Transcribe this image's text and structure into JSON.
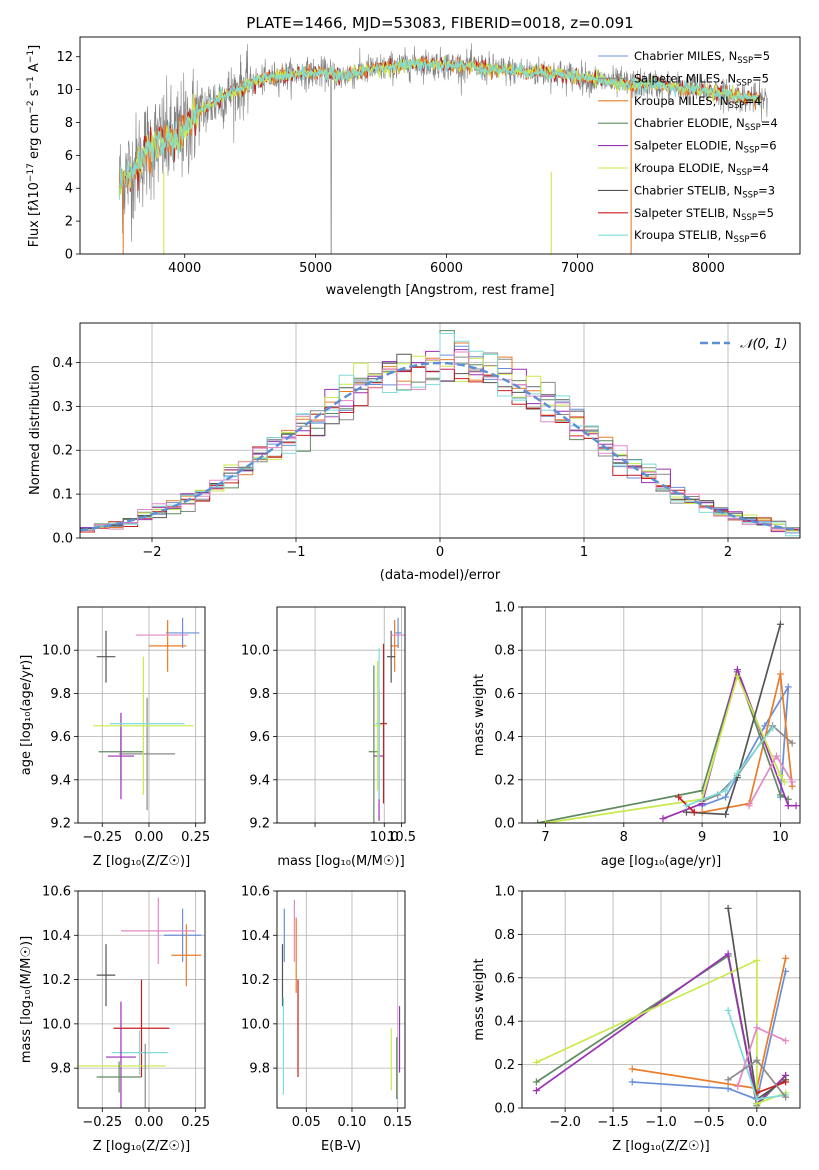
{
  "figure": {
    "title": "PLATE=1466, MJD=53083, FIBERID=0018, z=0.091"
  },
  "styles": {
    "colors": {
      "Chabrier MILES": "#6a8fd8",
      "Salpeter MILES": "#8a8a8a",
      "Kroupa MILES": "#e87d2b",
      "Chabrier ELODIE": "#5f8a5f",
      "Salpeter ELODIE": "#9b30b5",
      "Kroupa ELODIE": "#c8ea4a",
      "Chabrier STELIB": "#555555",
      "Salpeter STELIB": "#c81e1e",
      "Kroupa STELIB": "#7fdcd8",
      "Gaussian": "#5b8fd6",
      "spectrum_gray": "#808080"
    }
  },
  "chart_data": [
    {
      "id": "spectrum",
      "type": "line",
      "title": "PLATE=1466, MJD=53083, FIBERID=0018, z=0.091",
      "xlabel": "wavelength [Angstrom, rest frame]",
      "ylabel": "Flux [fλ10⁻¹⁷ erg cm⁻² s⁻¹ A⁻¹]",
      "xlim": [
        3200,
        8700
      ],
      "ylim": [
        0,
        13.2
      ],
      "xticks": [
        4000,
        5000,
        6000,
        7000,
        8000
      ],
      "yticks": [
        0,
        2,
        4,
        6,
        8,
        10,
        12
      ],
      "legend": {
        "placement": "right",
        "entries": [
          {
            "model": "Chabrier MILES",
            "nssp": "5"
          },
          {
            "model": "Salpeter MILES",
            "nssp": "5"
          },
          {
            "model": "Kroupa MILES",
            "nssp": "4"
          },
          {
            "model": "Chabrier ELODIE",
            "nssp": "4"
          },
          {
            "model": "Salpeter ELODIE",
            "nssp": "6"
          },
          {
            "model": "Kroupa ELODIE",
            "nssp": "4"
          },
          {
            "model": "Chabrier STELIB",
            "nssp": "3"
          },
          {
            "model": "Salpeter STELIB",
            "nssp": "5"
          },
          {
            "model": "Kroupa STELIB",
            "nssp": "6"
          }
        ]
      },
      "continuum": [
        [
          3500,
          4.4
        ],
        [
          3600,
          5.0
        ],
        [
          3700,
          6.3
        ],
        [
          3800,
          6.8
        ],
        [
          3900,
          6.9
        ],
        [
          4000,
          7.6
        ],
        [
          4100,
          8.6
        ],
        [
          4200,
          9.1
        ],
        [
          4300,
          9.6
        ],
        [
          4400,
          10.0
        ],
        [
          4500,
          10.4
        ],
        [
          4700,
          10.8
        ],
        [
          4900,
          11.0
        ],
        [
          5100,
          11.0
        ],
        [
          5200,
          10.8
        ],
        [
          5400,
          11.2
        ],
        [
          5600,
          11.4
        ],
        [
          5800,
          11.6
        ],
        [
          6000,
          11.5
        ],
        [
          6200,
          11.4
        ],
        [
          6400,
          11.2
        ],
        [
          6600,
          11.1
        ],
        [
          6800,
          11.0
        ],
        [
          7000,
          10.8
        ],
        [
          7200,
          10.5
        ],
        [
          7400,
          10.3
        ],
        [
          7600,
          10.3
        ],
        [
          7800,
          10.1
        ],
        [
          8000,
          9.9
        ],
        [
          8200,
          9.6
        ],
        [
          8400,
          9.4
        ]
      ],
      "xrange_data": [
        3500,
        8450
      ]
    },
    {
      "id": "residuals",
      "type": "histogram",
      "xlabel": "(data-model)/error",
      "ylabel": "Normed distribution",
      "xlim": [
        -2.5,
        2.5
      ],
      "ylim": [
        0,
        0.49
      ],
      "xticks": [
        -2,
        -1,
        0,
        1,
        2
      ],
      "yticks": [
        0.0,
        0.1,
        0.2,
        0.3,
        0.4
      ],
      "grid": true,
      "legend": {
        "placement": "top-right",
        "entries": [
          "𝒩(0, 1)"
        ]
      },
      "bin_width": 0.1
    },
    {
      "id": "age_vs_Z",
      "type": "errorbar",
      "xlabel": "Z [log₁₀(Z/Z☉)]",
      "ylabel": "age  [log₁₀(age/yr)]",
      "xlim": [
        -0.38,
        0.3
      ],
      "ylim": [
        9.2,
        10.2
      ],
      "xticks": [
        -0.25,
        0.0,
        0.25
      ],
      "yticks": [
        9.2,
        9.4,
        9.6,
        9.8,
        10.0
      ],
      "grid": true,
      "points": [
        {
          "model": "Chabrier MILES",
          "x": 0.18,
          "y": 10.08,
          "xerr": 0.09,
          "yerr": 0.07
        },
        {
          "model": "Salpeter MILES",
          "x": -0.01,
          "y": 9.52,
          "xerr": 0.15,
          "yerr": 0.26
        },
        {
          "model": "Kroupa MILES",
          "x": 0.1,
          "y": 10.02,
          "xerr": 0.1,
          "yerr": 0.12
        },
        {
          "model": "Chabrier ELODIE",
          "x": -0.15,
          "y": 9.53,
          "xerr": 0.12,
          "yerr": 0.13
        },
        {
          "model": "Salpeter ELODIE",
          "x": -0.15,
          "y": 9.51,
          "xerr": 0.07,
          "yerr": 0.2
        },
        {
          "model": "Kroupa ELODIE",
          "x": -0.03,
          "y": 9.65,
          "xerr": 0.27,
          "yerr": 0.32
        },
        {
          "model": "Chabrier STELIB",
          "x": -0.23,
          "y": 9.97,
          "xerr": 0.05,
          "yerr": 0.12
        },
        {
          "model": "Salpeter STELIB",
          "x": -0.15,
          "y": 9.66,
          "xerr": 0.0,
          "yerr": 0.0
        },
        {
          "model": "Kroupa STELIB",
          "x": -0.01,
          "y": 9.66,
          "xerr": 0.2,
          "yerr": 0.0
        },
        {
          "model": "Pink",
          "x": 0.07,
          "y": 10.07,
          "xerr": 0.14,
          "yerr": 0.0
        }
      ]
    },
    {
      "id": "age_vs_mass",
      "type": "errorbar",
      "xlabel": "mass [log₁₀(M/M☉)]",
      "ylabel": "",
      "xlim": [
        6.9,
        10.6
      ],
      "ylim": [
        9.2,
        10.2
      ],
      "xticks": [
        8.0,
        10.0,
        10.5
      ],
      "xticklabels": [
        "",
        "10.0",
        "10.5"
      ],
      "yticks": [
        9.2,
        9.4,
        9.6,
        9.8,
        10.0
      ],
      "grid": true,
      "points": [
        {
          "model": "Chabrier MILES",
          "x": 10.4,
          "y": 10.08,
          "xerr": 0.1,
          "yerr": 0.07
        },
        {
          "model": "Kroupa MILES",
          "x": 10.3,
          "y": 10.02,
          "xerr": 0.12,
          "yerr": 0.12
        },
        {
          "model": "Chabrier STELIB",
          "x": 10.2,
          "y": 9.97,
          "xerr": 0.12,
          "yerr": 0.12
        },
        {
          "model": "Pink",
          "x": 10.4,
          "y": 10.07,
          "xerr": 0.2,
          "yerr": 0.0
        },
        {
          "model": "Chabrier ELODIE",
          "x": 9.7,
          "y": 9.53,
          "xerr": 0.15,
          "yerr": 0.4
        },
        {
          "model": "Salpeter ELODIE",
          "x": 9.85,
          "y": 9.51,
          "xerr": 0.15,
          "yerr": 0.3
        },
        {
          "model": "Kroupa ELODIE",
          "x": 9.81,
          "y": 9.65,
          "xerr": 0.1,
          "yerr": 0.3
        },
        {
          "model": "Kroupa STELIB",
          "x": 9.85,
          "y": 9.66,
          "xerr": 0.1,
          "yerr": 0.35
        },
        {
          "model": "Salpeter STELIB",
          "x": 9.98,
          "y": 9.66,
          "xerr": 0.1,
          "yerr": 0.37
        }
      ]
    },
    {
      "id": "weight_vs_age",
      "type": "line",
      "xlabel": "age  [log₁₀(age/yr)]",
      "ylabel": "mass weight",
      "xlim": [
        6.7,
        10.25
      ],
      "ylim": [
        0.0,
        1.0
      ],
      "xticks": [
        7,
        8,
        9,
        10
      ],
      "yticks": [
        0.0,
        0.2,
        0.4,
        0.6,
        0.8,
        1.0
      ],
      "grid": true,
      "series": [
        {
          "model": "Chabrier MILES",
          "x": [
            9.0,
            9.3,
            9.8,
            10.1,
            10.0
          ],
          "y": [
            0.08,
            0.12,
            0.45,
            0.63,
            0.12
          ]
        },
        {
          "model": "Salpeter MILES",
          "x": [
            9.0,
            9.2,
            9.45,
            9.9,
            10.15
          ],
          "y": [
            0.1,
            0.13,
            0.22,
            0.45,
            0.37
          ]
        },
        {
          "model": "Kroupa MILES",
          "x": [
            9.0,
            9.6,
            10.0,
            10.15
          ],
          "y": [
            0.05,
            0.09,
            0.69,
            0.17
          ]
        },
        {
          "model": "Chabrier ELODIE",
          "x": [
            6.9,
            9.0,
            9.45,
            10.0,
            10.1
          ],
          "y": [
            0.0,
            0.15,
            0.7,
            0.13,
            0.11
          ]
        },
        {
          "model": "Salpeter ELODIE",
          "x": [
            8.5,
            9.0,
            9.45,
            10.1,
            10.2
          ],
          "y": [
            0.02,
            0.09,
            0.71,
            0.08,
            0.08
          ]
        },
        {
          "model": "Kroupa ELODIE",
          "x": [
            7.0,
            9.0,
            9.45,
            10.0,
            10.05
          ],
          "y": [
            0.0,
            0.11,
            0.68,
            0.22,
            0.19
          ]
        },
        {
          "model": "Chabrier STELIB",
          "x": [
            8.8,
            9.3,
            9.45,
            10.0
          ],
          "y": [
            0.05,
            0.04,
            0.21,
            0.92
          ]
        },
        {
          "model": "Salpeter STELIB",
          "x": [
            8.7,
            8.9
          ],
          "y": [
            0.12,
            0.05
          ]
        },
        {
          "model": "Kroupa STELIB",
          "x": [
            8.8,
            9.3,
            9.45,
            9.9
          ],
          "y": [
            0.08,
            0.15,
            0.23,
            0.44
          ]
        },
        {
          "model": "Pink",
          "x": [
            9.6,
            9.95,
            10.15
          ],
          "y": [
            0.08,
            0.31,
            0.19
          ]
        }
      ]
    },
    {
      "id": "mass_vs_Z",
      "type": "errorbar",
      "xlabel": "Z [log₁₀(Z/Z☉)]",
      "ylabel": "mass [log₁₀(M/M☉)]",
      "xlim": [
        -0.38,
        0.3
      ],
      "ylim": [
        9.62,
        10.6
      ],
      "xticks": [
        -0.25,
        0.0,
        0.25
      ],
      "yticks": [
        9.8,
        10.0,
        10.2,
        10.4,
        10.6
      ],
      "grid": true,
      "points": [
        {
          "model": "Chabrier MILES",
          "x": 0.18,
          "y": 10.4,
          "xerr": 0.1,
          "yerr": 0.12
        },
        {
          "model": "Kroupa MILES",
          "x": 0.2,
          "y": 10.31,
          "xerr": 0.08,
          "yerr": 0.14
        },
        {
          "model": "Pink",
          "x": 0.05,
          "y": 10.42,
          "xerr": 0.2,
          "yerr": 0.15
        },
        {
          "model": "Chabrier STELIB",
          "x": -0.23,
          "y": 10.22,
          "xerr": 0.05,
          "yerr": 0.14
        },
        {
          "model": "Salpeter STELIB",
          "x": -0.04,
          "y": 9.98,
          "xerr": 0.15,
          "yerr": 0.22
        },
        {
          "model": "Kroupa STELIB",
          "x": -0.05,
          "y": 9.87,
          "xerr": 0.15,
          "yerr": 0.1
        },
        {
          "model": "Salpeter ELODIE",
          "x": -0.15,
          "y": 9.85,
          "xerr": 0.08,
          "yerr": 0.25
        },
        {
          "model": "Kroupa ELODIE",
          "x": -0.15,
          "y": 9.81,
          "xerr": 0.24,
          "yerr": 0.0
        },
        {
          "model": "Chabrier ELODIE",
          "x": -0.16,
          "y": 9.76,
          "xerr": 0.12,
          "yerr": 0.07
        },
        {
          "model": "Salpeter MILES",
          "x": -0.02,
          "y": 9.76,
          "xerr": 0.0,
          "yerr": 0.15
        }
      ]
    },
    {
      "id": "mass_vs_EBV",
      "type": "errorbar",
      "xlabel": "E(B-V)",
      "ylabel": "",
      "xlim": [
        0.018,
        0.158
      ],
      "ylim": [
        9.62,
        10.6
      ],
      "xticks": [
        0.05,
        0.1,
        0.15
      ],
      "yticks": [
        9.8,
        10.0,
        10.2,
        10.4,
        10.6
      ],
      "grid": true,
      "points": [
        {
          "model": "Chabrier MILES",
          "x": 0.026,
          "y": 10.4,
          "xerr": 0,
          "yerr": 0.12
        },
        {
          "model": "Pink",
          "x": 0.037,
          "y": 10.42,
          "xerr": 0,
          "yerr": 0.14
        },
        {
          "model": "Kroupa MILES",
          "x": 0.039,
          "y": 10.31,
          "xerr": 0,
          "yerr": 0.17
        },
        {
          "model": "Chabrier STELIB",
          "x": 0.024,
          "y": 10.22,
          "xerr": 0,
          "yerr": 0.14
        },
        {
          "model": "Salpeter STELIB",
          "x": 0.041,
          "y": 9.98,
          "xerr": 0,
          "yerr": 0.22
        },
        {
          "model": "Kroupa STELIB",
          "x": 0.025,
          "y": 9.9,
          "xerr": 0,
          "yerr": 0.22
        },
        {
          "model": "Kroupa ELODIE",
          "x": 0.143,
          "y": 9.84,
          "xerr": 0,
          "yerr": 0.14
        },
        {
          "model": "Salpeter ELODIE",
          "x": 0.152,
          "y": 9.93,
          "xerr": 0,
          "yerr": 0.15
        },
        {
          "model": "Chabrier ELODIE",
          "x": 0.149,
          "y": 9.8,
          "xerr": 0,
          "yerr": 0.14
        }
      ]
    },
    {
      "id": "weight_vs_Z",
      "type": "line",
      "xlabel": "Z [log₁₀(Z/Z☉)]",
      "ylabel": "mass weight",
      "xlim": [
        -2.45,
        0.45
      ],
      "ylim": [
        0.0,
        1.0
      ],
      "xticks": [
        -2.0,
        -1.5,
        -1.0,
        -0.5,
        0.0
      ],
      "yticks": [
        0.0,
        0.2,
        0.4,
        0.6,
        0.8,
        1.0
      ],
      "grid": true,
      "series": [
        {
          "model": "Chabrier MILES",
          "x": [
            -1.3,
            -0.3,
            0.0,
            0.3
          ],
          "y": [
            0.12,
            0.09,
            0.04,
            0.63
          ]
        },
        {
          "model": "Kroupa MILES",
          "x": [
            -1.3,
            0.0,
            0.3
          ],
          "y": [
            0.18,
            0.09,
            0.69
          ]
        },
        {
          "model": "Chabrier ELODIE",
          "x": [
            -2.3,
            -0.3,
            0.0,
            0.3
          ],
          "y": [
            0.12,
            0.7,
            0.01,
            0.15
          ]
        },
        {
          "model": "Salpeter ELODIE",
          "x": [
            -2.3,
            -0.3,
            0.0,
            0.3
          ],
          "y": [
            0.08,
            0.71,
            0.02,
            0.15
          ]
        },
        {
          "model": "Kroupa ELODIE",
          "x": [
            -2.3,
            0.0,
            0.0,
            0.3
          ],
          "y": [
            0.21,
            0.68,
            0.02,
            0.07
          ]
        },
        {
          "model": "Chabrier STELIB",
          "x": [
            -0.3,
            0.0,
            0.3
          ],
          "y": [
            0.92,
            0.04,
            0.13
          ]
        },
        {
          "model": "Salpeter STELIB",
          "x": [
            0.0,
            0.3
          ],
          "y": [
            0.07,
            0.12
          ]
        },
        {
          "model": "Kroupa STELIB",
          "x": [
            -0.3,
            0.0,
            0.3
          ],
          "y": [
            0.45,
            0.04,
            0.06
          ]
        },
        {
          "model": "Pink",
          "x": [
            -0.2,
            0.0,
            0.3
          ],
          "y": [
            0.1,
            0.37,
            0.31
          ]
        },
        {
          "model": "Salpeter MILES",
          "x": [
            -0.3,
            0.0,
            0.3
          ],
          "y": [
            0.13,
            0.22,
            0.05
          ]
        }
      ]
    }
  ]
}
